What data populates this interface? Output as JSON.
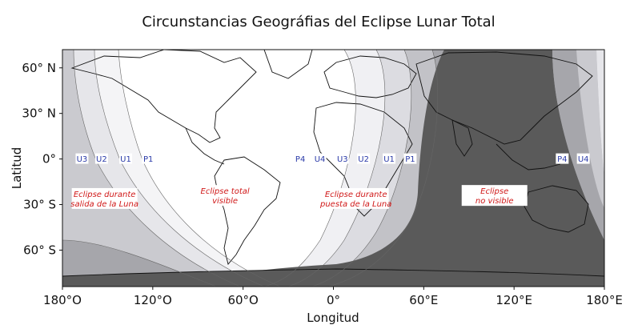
{
  "title": "Circunstancias Geográfias del Eclipse Lunar Total",
  "xlabel": "Longitud",
  "ylabel": "Latitud",
  "x_ticks": [
    {
      "lon": -180,
      "label": "180°O"
    },
    {
      "lon": -120,
      "label": "120°O"
    },
    {
      "lon": -60,
      "label": "60°O"
    },
    {
      "lon": 0,
      "label": "0°"
    },
    {
      "lon": 60,
      "label": "60°E"
    },
    {
      "lon": 120,
      "label": "120°E"
    },
    {
      "lon": 180,
      "label": "180°E"
    }
  ],
  "y_ticks": [
    {
      "lat": 60,
      "label": "60° N"
    },
    {
      "lat": 30,
      "label": "30° N"
    },
    {
      "lat": 0,
      "label": "0°"
    },
    {
      "lat": -30,
      "label": "30° S"
    },
    {
      "lat": -60,
      "label": "60° S"
    }
  ],
  "contact_labels_moonset": [
    {
      "text": "U3",
      "lon": -167
    },
    {
      "text": "U2",
      "lon": -154
    },
    {
      "text": "U1",
      "lon": -138
    },
    {
      "text": "P1",
      "lon": -123
    }
  ],
  "contact_labels_moonrise": [
    {
      "text": "P4",
      "lon": -22
    },
    {
      "text": "U4",
      "lon": -9
    },
    {
      "text": "U3",
      "lon": 6
    },
    {
      "text": "U2",
      "lon": 20
    },
    {
      "text": "U1",
      "lon": 37
    },
    {
      "text": "P1",
      "lon": 51
    },
    {
      "text": "P4",
      "lon": 152
    },
    {
      "text": "U4",
      "lon": 166
    }
  ],
  "region_labels": [
    {
      "lines": [
        "Eclipse durante",
        "salida de la Luna"
      ],
      "lon": -152,
      "lat": -26
    },
    {
      "lines": [
        "Eclipse total",
        "visible"
      ],
      "lon": -72,
      "lat": -24
    },
    {
      "lines": [
        "Eclipse durante",
        "puesta de la Luna"
      ],
      "lon": 15,
      "lat": -26
    },
    {
      "lines": [
        "Eclipse",
        "no visible"
      ],
      "lon": 107,
      "lat": -24
    }
  ],
  "colors": {
    "visible": "#ffffff",
    "band_1": "#e6e6ea",
    "band_2": "#cacacf",
    "band_3": "#a6a6ab",
    "not_visible": "#5a5a5a",
    "coastline": "#111111",
    "contact_label": "#2a3aa8",
    "region_label": "#d01818"
  }
}
